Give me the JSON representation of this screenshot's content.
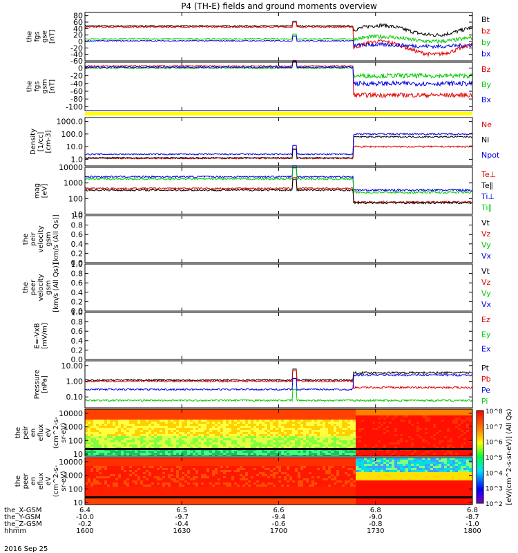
{
  "title": "P4 (TH-E) fields and ground moments overview",
  "date_label": "2016 Sep 25",
  "colors": {
    "black": "#000000",
    "red": "#e00000",
    "green": "#00c800",
    "blue": "#0000e0",
    "yellow": "#ffff00"
  },
  "x_axis": {
    "range": [
      1600,
      1800
    ],
    "tick_times": [
      1600,
      1630,
      1700,
      1730,
      1800
    ],
    "rows": [
      {
        "name": "the_X-GSM",
        "labels": [
          "6.4",
          "6.5",
          "6.6",
          "6.8",
          "6.8"
        ]
      },
      {
        "name": "the_Y-GSM",
        "labels": [
          "-10.0",
          "-9.7",
          "-9.4",
          "-9.0",
          "-8.7"
        ]
      },
      {
        "name": "the_Z-GSM",
        "labels": [
          "-0.2",
          "-0.4",
          "-0.6",
          "-0.8",
          "-1.0"
        ]
      },
      {
        "name": "hhmm",
        "labels": [
          "1600",
          "1630",
          "1700",
          "1730",
          "1800"
        ]
      }
    ]
  },
  "panels": [
    {
      "id": "fgs_gse",
      "ylabel": [
        "the",
        "fgs",
        "gse",
        "[nT]"
      ],
      "type": "line",
      "scale": "linear",
      "ylim": [
        -60,
        90
      ],
      "ticks": [
        "80",
        "60",
        "40",
        "20",
        "0",
        "-20",
        "-40",
        "-60"
      ],
      "tick_values": [
        80,
        60,
        40,
        20,
        0,
        -20,
        -40,
        -60
      ],
      "legend": [
        {
          "text": "Bt",
          "color": "black"
        },
        {
          "text": "bz",
          "color": "red"
        },
        {
          "text": "by",
          "color": "green"
        },
        {
          "text": "bx",
          "color": "blue"
        }
      ]
    },
    {
      "id": "fgs_gsm",
      "ylabel": [
        "the",
        "fgs",
        "gsm",
        "[nT]"
      ],
      "type": "line",
      "scale": "linear",
      "ylim": [
        -110,
        15
      ],
      "ticks": [
        "0",
        "-20",
        "-40",
        "-60",
        "-80",
        "-100"
      ],
      "tick_values": [
        0,
        -20,
        -40,
        -60,
        -80,
        -100
      ],
      "legend": [
        {
          "text": "Bz",
          "color": "red"
        },
        {
          "text": "By",
          "color": "green"
        },
        {
          "text": "Bx",
          "color": "blue"
        }
      ]
    },
    {
      "id": "density",
      "ylabel": [
        "Density",
        "[1/cc]",
        "[cm-3]"
      ],
      "type": "line",
      "scale": "log",
      "ylim": [
        0.3,
        2000
      ],
      "ticks": [
        "1000.0",
        "100.0",
        "10.0",
        "1.0"
      ],
      "tick_values": [
        1000,
        100,
        10,
        1
      ],
      "legend": [
        {
          "text": "Ne",
          "color": "red"
        },
        {
          "text": "Ni",
          "color": "black"
        },
        {
          "text": "Npot",
          "color": "blue"
        }
      ]
    },
    {
      "id": "temperature",
      "ylabel": [
        "mag",
        "[eV]"
      ],
      "type": "line",
      "scale": "log",
      "ylim": [
        10,
        10000
      ],
      "ticks": [
        "10000",
        "1000",
        "100",
        "10"
      ],
      "tick_values": [
        10000,
        1000,
        100,
        10
      ],
      "legend": [
        {
          "text": "Te⊥",
          "color": "red"
        },
        {
          "text": "Te∥",
          "color": "black"
        },
        {
          "text": "Ti⊥",
          "color": "blue"
        },
        {
          "text": "Ti∥",
          "color": "green"
        }
      ]
    },
    {
      "id": "peir_velocity",
      "ylabel": [
        "the",
        "peir",
        "velocity",
        "gsm",
        "[km/s (All Qs)]"
      ],
      "type": "empty",
      "scale": "linear",
      "ylim": [
        0,
        1
      ],
      "ticks": [
        "1.0",
        "0.8",
        "0.6",
        "0.4",
        "0.2",
        "0.0"
      ],
      "tick_values": [
        1,
        0.8,
        0.6,
        0.4,
        0.2,
        0
      ],
      "legend": [
        {
          "text": "Vt",
          "color": "black"
        },
        {
          "text": "Vz",
          "color": "red"
        },
        {
          "text": "Vy",
          "color": "green"
        },
        {
          "text": "Vx",
          "color": "blue"
        }
      ]
    },
    {
      "id": "peer_velocity",
      "ylabel": [
        "the",
        "peer",
        "velocity",
        "gsm",
        "[km/s (All Qs)]"
      ],
      "type": "empty",
      "scale": "linear",
      "ylim": [
        0,
        1
      ],
      "ticks": [
        "1.0",
        "0.8",
        "0.6",
        "0.4",
        "0.2",
        "0.0"
      ],
      "tick_values": [
        1,
        0.8,
        0.6,
        0.4,
        0.2,
        0
      ],
      "legend": [
        {
          "text": "Vt",
          "color": "black"
        },
        {
          "text": "Vz",
          "color": "red"
        },
        {
          "text": "Vy",
          "color": "green"
        },
        {
          "text": "Vx",
          "color": "blue"
        }
      ]
    },
    {
      "id": "efield",
      "ylabel": [
        "E=-VxB",
        "[mV/m]"
      ],
      "type": "empty",
      "scale": "linear",
      "ylim": [
        0,
        1
      ],
      "ticks": [
        "1.0",
        "0.8",
        "0.6",
        "0.4",
        "0.2",
        "0.0"
      ],
      "tick_values": [
        1,
        0.8,
        0.6,
        0.4,
        0.2,
        0
      ],
      "legend": [
        {
          "text": "Ez",
          "color": "red"
        },
        {
          "text": "Ey",
          "color": "green"
        },
        {
          "text": "Ex",
          "color": "blue"
        }
      ]
    },
    {
      "id": "pressure",
      "ylabel": [
        "Pressure",
        "[nPa]"
      ],
      "type": "line",
      "scale": "log",
      "ylim": [
        0.02,
        20
      ],
      "ticks": [
        "10.00",
        "1.00",
        "0.10"
      ],
      "tick_values": [
        10,
        1,
        0.1
      ],
      "legend": [
        {
          "text": "Pt",
          "color": "black"
        },
        {
          "text": "Pb",
          "color": "red"
        },
        {
          "text": "Pe",
          "color": "blue"
        },
        {
          "text": "Pi",
          "color": "green"
        }
      ]
    },
    {
      "id": "peir_spec",
      "ylabel": [
        "the",
        "peir",
        "en",
        "eflux",
        "eV",
        "(cm^2-s-",
        "sr-eV)"
      ],
      "type": "spectrogram",
      "scale": "log",
      "ylim": [
        7,
        20000
      ],
      "ticks": [
        "10000",
        "1000",
        "100",
        "10"
      ],
      "tick_values": [
        10000,
        1000,
        100,
        10
      ],
      "legend": []
    },
    {
      "id": "peer_spec",
      "ylabel": [
        "the",
        "peer",
        "en",
        "eflux",
        "eV",
        "(cm^2-s-",
        "sr-eV)"
      ],
      "type": "spectrogram",
      "scale": "log",
      "ylim": [
        7,
        20000
      ],
      "ticks": [
        "10000",
        "1000",
        "100",
        "10"
      ],
      "tick_values": [
        10000,
        1000,
        100,
        10
      ],
      "legend": []
    }
  ],
  "colorbar": {
    "labels": [
      "10^8",
      "10^7",
      "10^6",
      "10^5",
      "10^4",
      "10^3",
      "10^2"
    ],
    "label_values": [
      8,
      7,
      6,
      5,
      4,
      3,
      2
    ],
    "title": "[eV/(cm^2-s-sr-eV)] (All Qs)"
  },
  "chart_data": {
    "type": "line",
    "x_unit": "hhmm",
    "time_range": [
      "1600",
      "1800"
    ],
    "event_times": {
      "spike": 1705,
      "boundary": 1723
    },
    "series_summary": [
      {
        "panel": "fgs_gse",
        "name": "Bt",
        "before_boundary": 48,
        "after_boundary": [
          20,
          50
        ]
      },
      {
        "panel": "fgs_gse",
        "name": "bz",
        "before_boundary": 45,
        "after_boundary": [
          -40,
          0
        ]
      },
      {
        "panel": "fgs_gse",
        "name": "by",
        "before_boundary": 8,
        "after_boundary": [
          0,
          15
        ]
      },
      {
        "panel": "fgs_gse",
        "name": "bx",
        "before_boundary": 2,
        "after_boundary": [
          -15,
          -10
        ]
      },
      {
        "panel": "fgs_gsm",
        "name": "Bz",
        "before_boundary": 5,
        "after_boundary": -70
      },
      {
        "panel": "fgs_gsm",
        "name": "By",
        "before_boundary": 0,
        "after_boundary": -20
      },
      {
        "panel": "fgs_gsm",
        "name": "Bx",
        "before_boundary": 2,
        "after_boundary": -40
      },
      {
        "panel": "density",
        "name": "Ne",
        "before_boundary": 1.2,
        "after_boundary": 10
      },
      {
        "panel": "density",
        "name": "Ni",
        "before_boundary": 1.3,
        "after_boundary": 60
      },
      {
        "panel": "density",
        "name": "Npot",
        "before_boundary": 2.5,
        "after_boundary": 100
      },
      {
        "panel": "temperature",
        "name": "Te⊥",
        "before_boundary": 450,
        "after_boundary": 60
      },
      {
        "panel": "temperature",
        "name": "Te∥",
        "before_boundary": 350,
        "after_boundary": 55
      },
      {
        "panel": "temperature",
        "name": "Ti⊥",
        "before_boundary": 2500,
        "after_boundary": 350
      },
      {
        "panel": "temperature",
        "name": "Ti∥",
        "before_boundary": 1800,
        "after_boundary": 250
      },
      {
        "panel": "pressure",
        "name": "Pt",
        "before_boundary": 1.2,
        "after_boundary": 3.5
      },
      {
        "panel": "pressure",
        "name": "Pb",
        "before_boundary": 1.0,
        "after_boundary": 0.4
      },
      {
        "panel": "pressure",
        "name": "Pe",
        "before_boundary": 0.3,
        "after_boundary": 2.5
      },
      {
        "panel": "pressure",
        "name": "Pi",
        "before_boundary": 0.06,
        "after_boundary": 0.06
      }
    ]
  }
}
